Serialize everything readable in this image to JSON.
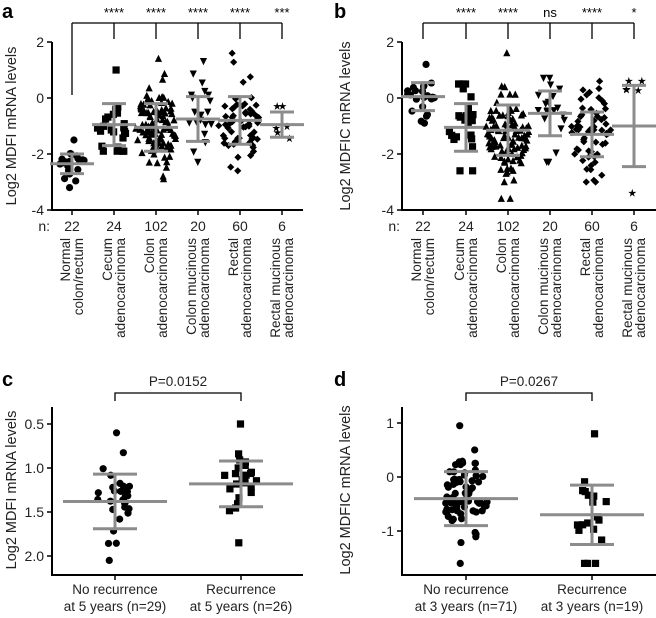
{
  "chart_data": [
    {
      "panel": "a",
      "type": "scatter",
      "ylabel": "Log2 MDFI mRNA levels",
      "ylim": [
        -4,
        2
      ],
      "yticks": [
        "2",
        "0",
        "-2",
        "-4"
      ],
      "ytick_values": [
        2,
        0,
        -2,
        -4
      ],
      "n_prefix": "n:",
      "groups": [
        {
          "label": [
            "Normal",
            "colon/rectum"
          ],
          "n": "22",
          "significance": "",
          "marker": "circle",
          "mean": -2.35,
          "sd": 0.35,
          "min": -3.2,
          "max": -1.5
        },
        {
          "label": [
            "Cecum",
            "adenocarcinoma"
          ],
          "n": "24",
          "significance": "****",
          "marker": "square",
          "mean": -0.95,
          "sd": 0.75,
          "min": -1.9,
          "max": 1.0
        },
        {
          "label": [
            "Colon",
            "adenocarcinoma"
          ],
          "n": "102",
          "significance": "****",
          "marker": "triangle",
          "mean": -1.05,
          "sd": 0.85,
          "min": -2.9,
          "max": 1.4
        },
        {
          "label": [
            "Colon mucinous",
            "adenocarcinoma"
          ],
          "n": "20",
          "significance": "****",
          "marker": "triangle-down",
          "mean": -0.75,
          "sd": 0.8,
          "min": -2.3,
          "max": 1.3
        },
        {
          "label": [
            "Rectal",
            "adenocarcinoma"
          ],
          "n": "60",
          "significance": "****",
          "marker": "diamond",
          "mean": -0.8,
          "sd": 0.85,
          "min": -2.6,
          "max": 1.6
        },
        {
          "label": [
            "Rectal mucinous",
            "adenocarcinoma"
          ],
          "n": "6",
          "significance": "***",
          "marker": "star",
          "mean": -0.95,
          "sd": 0.45,
          "min": -1.45,
          "max": -0.3
        }
      ]
    },
    {
      "panel": "b",
      "type": "scatter",
      "ylabel": "Log2 MDFIC mRNA levels",
      "ylim": [
        -4,
        2
      ],
      "yticks": [
        "2",
        "0",
        "-2",
        "-4"
      ],
      "ytick_values": [
        2,
        0,
        -2,
        -4
      ],
      "n_prefix": "n:",
      "groups": [
        {
          "label": [
            "Normal",
            "colon/rectum"
          ],
          "n": "22",
          "significance": "",
          "marker": "circle",
          "mean": 0.05,
          "sd": 0.5,
          "min": -0.9,
          "max": 1.2
        },
        {
          "label": [
            "Cecum",
            "adenocarcinoma"
          ],
          "n": "24",
          "significance": "****",
          "marker": "square",
          "mean": -1.05,
          "sd": 0.85,
          "min": -2.6,
          "max": 0.5
        },
        {
          "label": [
            "Colon",
            "adenocarcinoma"
          ],
          "n": "102",
          "significance": "****",
          "marker": "triangle",
          "mean": -1.15,
          "sd": 0.9,
          "min": -3.6,
          "max": 1.6
        },
        {
          "label": [
            "Colon mucinous",
            "adenocarcinoma"
          ],
          "n": "20",
          "significance": "ns",
          "marker": "triangle-down",
          "mean": -0.55,
          "sd": 0.8,
          "min": -2.3,
          "max": 0.7
        },
        {
          "label": [
            "Rectal",
            "adenocarcinoma"
          ],
          "n": "60",
          "significance": "****",
          "marker": "diamond",
          "mean": -1.3,
          "sd": 0.8,
          "min": -3.0,
          "max": 0.6
        },
        {
          "label": [
            "Rectal mucinous",
            "adenocarcinoma"
          ],
          "n": "6",
          "significance": "*",
          "marker": "star",
          "mean": -1.0,
          "sd": 1.45,
          "min": -3.4,
          "max": 0.6
        }
      ]
    },
    {
      "panel": "c",
      "type": "scatter",
      "ylabel": "Log2 MDFI mRNA levels",
      "ylim": [
        2.2,
        0.3
      ],
      "yticks": [
        "0.5",
        "1.0",
        "1.5",
        "2.0"
      ],
      "ytick_values": [
        0.5,
        1.0,
        1.5,
        2.0
      ],
      "pvalue": "P=0.0152",
      "groups": [
        {
          "label": [
            "No recurrence",
            "at 5 years (n=29)"
          ],
          "n": "29",
          "marker": "circle",
          "mean": 1.38,
          "sd": 0.31,
          "min": 0.6,
          "max": 2.05
        },
        {
          "label": [
            "Recurrence",
            "at 5 years (n=26)"
          ],
          "n": "26",
          "marker": "square",
          "mean": 1.18,
          "sd": 0.26,
          "min": 0.5,
          "max": 1.85
        }
      ]
    },
    {
      "panel": "d",
      "type": "scatter",
      "ylabel": "Log2 MDFIC mRNA levels",
      "ylim": [
        -1.75,
        1.3
      ],
      "yticks": [
        "1",
        "0",
        "-1"
      ],
      "ytick_values": [
        1,
        0,
        -1
      ],
      "pvalue": "P=0.0267",
      "groups": [
        {
          "label": [
            "No recurrence",
            "at 3 years (n=71)"
          ],
          "n": "71",
          "marker": "circle",
          "mean": -0.4,
          "sd": 0.5,
          "min": -1.6,
          "max": 0.95
        },
        {
          "label": [
            "Recurrence",
            "at 3 years (n=19)"
          ],
          "n": "19",
          "marker": "square",
          "mean": -0.7,
          "sd": 0.55,
          "min": -1.6,
          "max": 0.8
        }
      ]
    }
  ],
  "colors": {
    "points": "#000000",
    "summary_bars": "#8c8c8c",
    "axes": "#000000"
  }
}
